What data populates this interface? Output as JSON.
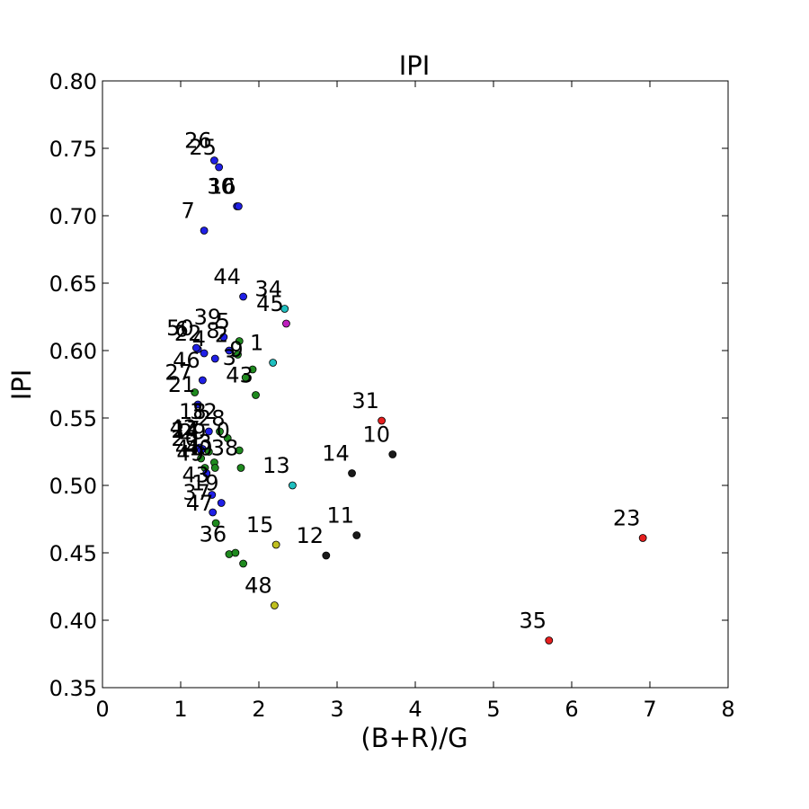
{
  "chart_data": {
    "type": "scatter",
    "title": "IPI",
    "xlabel": "(B+R)/G",
    "ylabel": "IPI",
    "xlim": [
      0,
      8
    ],
    "ylim": [
      0.35,
      0.8
    ],
    "x_ticks": [
      0,
      1,
      2,
      3,
      4,
      5,
      6,
      7,
      8
    ],
    "y_ticks": [
      0.35,
      0.4,
      0.45,
      0.5,
      0.55,
      0.6,
      0.65,
      0.7,
      0.75,
      0.8
    ],
    "grid": false,
    "legend": "none",
    "points": [
      {
        "label": "26",
        "x": 1.43,
        "y": 0.741,
        "color": "#1f1fe6"
      },
      {
        "label": "25",
        "x": 1.49,
        "y": 0.736,
        "color": "#1f1fe6"
      },
      {
        "label": "30",
        "x": 1.72,
        "y": 0.707,
        "color": "#1f1fe6"
      },
      {
        "label": "16",
        "x": 1.74,
        "y": 0.707,
        "color": "#1f1fe6"
      },
      {
        "label": "7",
        "x": 1.3,
        "y": 0.689,
        "color": "#1f1fe6"
      },
      {
        "label": "44",
        "x": 1.8,
        "y": 0.64,
        "color": "#1f1fe6"
      },
      {
        "label": "34",
        "x": 2.33,
        "y": 0.631,
        "color": "#1fbfbf"
      },
      {
        "label": "45",
        "x": 2.35,
        "y": 0.62,
        "color": "#bf1fbf"
      },
      {
        "label": "39",
        "x": 1.55,
        "y": 0.61,
        "color": "#1f1fe6"
      },
      {
        "label": "5",
        "x": 1.75,
        "y": 0.607,
        "color": "#1f8a1f"
      },
      {
        "label": "8",
        "x": 1.62,
        "y": 0.6,
        "color": "#1f1fe6"
      },
      {
        "label": "6",
        "x": 1.22,
        "y": 0.601,
        "color": "#1f1fe6"
      },
      {
        "label": "50",
        "x": 1.2,
        "y": 0.602,
        "color": "#1f1fe6"
      },
      {
        "label": "22",
        "x": 1.3,
        "y": 0.598,
        "color": "#1f1fe6"
      },
      {
        "label": "2",
        "x": 1.73,
        "y": 0.597,
        "color": "#1f8a1f"
      },
      {
        "label": "1",
        "x": 2.18,
        "y": 0.591,
        "color": "#1fbfbf"
      },
      {
        "label": "4",
        "x": 1.44,
        "y": 0.594,
        "color": "#1f1fe6"
      },
      {
        "label": "9",
        "x": 1.92,
        "y": 0.586,
        "color": "#1f8a1f"
      },
      {
        "label": "3",
        "x": 1.83,
        "y": 0.58,
        "color": "#1f8a1f"
      },
      {
        "label": "46",
        "x": 1.28,
        "y": 0.578,
        "color": "#1f1fe6"
      },
      {
        "label": "27",
        "x": 1.18,
        "y": 0.569,
        "color": "#1f8a1f"
      },
      {
        "label": "43",
        "x": 1.96,
        "y": 0.567,
        "color": "#1f8a1f"
      },
      {
        "label": "31",
        "x": 3.57,
        "y": 0.548,
        "color": "#e61f1f"
      },
      {
        "label": "10",
        "x": 3.71,
        "y": 0.523,
        "color": "#1a1a1a"
      },
      {
        "label": "21",
        "x": 1.22,
        "y": 0.56,
        "color": "#1f1fe6"
      },
      {
        "label": "18",
        "x": 1.36,
        "y": 0.54,
        "color": "#1f1fe6"
      },
      {
        "label": "32",
        "x": 1.5,
        "y": 0.54,
        "color": "#1f8a1f"
      },
      {
        "label": "28",
        "x": 1.6,
        "y": 0.535,
        "color": "#1f8a1f"
      },
      {
        "label": "42",
        "x": 1.24,
        "y": 0.528,
        "color": "#1f1fe6"
      },
      {
        "label": "17",
        "x": 1.28,
        "y": 0.527,
        "color": "#1f1fe6"
      },
      {
        "label": "29",
        "x": 1.36,
        "y": 0.525,
        "color": "#1f8a1f"
      },
      {
        "label": "24",
        "x": 1.26,
        "y": 0.526,
        "color": "#1f1fe6"
      },
      {
        "label": "20",
        "x": 1.26,
        "y": 0.52,
        "color": "#1f8a1f"
      },
      {
        "label": "0",
        "x": 1.75,
        "y": 0.526,
        "color": "#1f8a1f"
      },
      {
        "label": "14",
        "x": 3.19,
        "y": 0.509,
        "color": "#1a1a1a"
      },
      {
        "label": "13",
        "x": 2.43,
        "y": 0.5,
        "color": "#1fbfbf"
      },
      {
        "label": "41",
        "x": 1.31,
        "y": 0.513,
        "color": "#1f8a1f"
      },
      {
        "label": "33",
        "x": 1.43,
        "y": 0.517,
        "color": "#1f8a1f"
      },
      {
        "label": "40",
        "x": 1.44,
        "y": 0.513,
        "color": "#1f8a1f"
      },
      {
        "label": "38",
        "x": 1.77,
        "y": 0.513,
        "color": "#1f8a1f"
      },
      {
        "label": "49",
        "x": 1.33,
        "y": 0.509,
        "color": "#1f1fe6"
      },
      {
        "label": "43",
        "x": 1.4,
        "y": 0.493,
        "color": "#1f1fe6"
      },
      {
        "label": "19",
        "x": 1.52,
        "y": 0.487,
        "color": "#1f1fe6"
      },
      {
        "label": "11",
        "x": 3.25,
        "y": 0.463,
        "color": "#1a1a1a"
      },
      {
        "label": "15",
        "x": 2.22,
        "y": 0.456,
        "color": "#bfbf1f"
      },
      {
        "label": "12",
        "x": 2.86,
        "y": 0.448,
        "color": "#1a1a1a"
      },
      {
        "label": "37",
        "x": 1.41,
        "y": 0.48,
        "color": "#1f1fe6"
      },
      {
        "label": "47",
        "x": 1.45,
        "y": 0.472,
        "color": "#1f8a1f"
      },
      {
        "label": "36",
        "x": 1.62,
        "y": 0.449,
        "color": "#1f8a1f"
      },
      {
        "label": "",
        "x": 1.7,
        "y": 0.45,
        "color": "#1f8a1f"
      },
      {
        "label": "",
        "x": 1.8,
        "y": 0.442,
        "color": "#1f8a1f"
      },
      {
        "label": "48",
        "x": 2.2,
        "y": 0.411,
        "color": "#bfbf1f"
      },
      {
        "label": "23",
        "x": 6.91,
        "y": 0.461,
        "color": "#e61f1f"
      },
      {
        "label": "35",
        "x": 5.71,
        "y": 0.385,
        "color": "#e61f1f"
      }
    ]
  }
}
